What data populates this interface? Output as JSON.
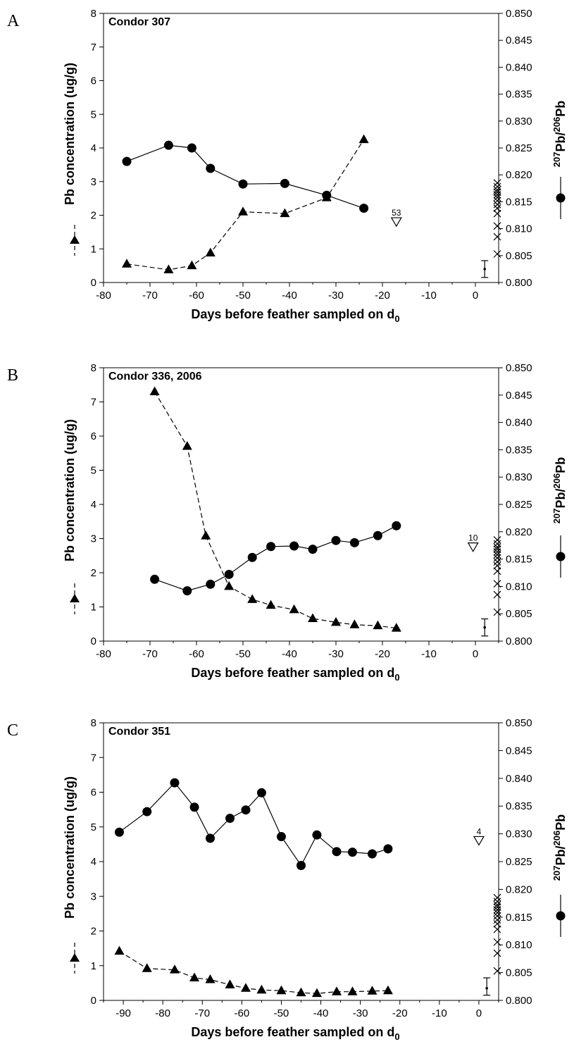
{
  "chart_data": [
    {
      "panel_label": "A",
      "title": "Condor 307",
      "type": "line",
      "xlabel": "Days before feather sampled on d",
      "xlabel_sub": "0",
      "ylabel_left": "Pb concentration (ug/g)",
      "ylabel_right_sup1": "207",
      "ylabel_right_mid": "Pb/",
      "ylabel_right_sup2": "206",
      "ylabel_right_end": "Pb",
      "xlim": [
        -80,
        5
      ],
      "xticks": [
        -80,
        -70,
        -60,
        -50,
        -40,
        -30,
        -20,
        -10,
        0
      ],
      "ylim_left": [
        0,
        8
      ],
      "yticks_left": [
        0,
        1,
        2,
        3,
        4,
        5,
        6,
        7,
        8
      ],
      "ylim_right": [
        0.8,
        0.85
      ],
      "yticks_right": [
        "0.800",
        "0.805",
        "0.810",
        "0.815",
        "0.820",
        "0.825",
        "0.830",
        "0.835",
        "0.840",
        "0.845",
        "0.850"
      ],
      "series": [
        {
          "axis": "right",
          "marker": "circle",
          "style": "solid",
          "x": [
            -75,
            -66,
            -61,
            -57,
            -50,
            -41,
            -32,
            -24
          ],
          "y": [
            0.8225,
            0.8255,
            0.825,
            0.8212,
            0.8183,
            0.8184,
            0.8162,
            0.8138
          ]
        },
        {
          "axis": "left",
          "marker": "triangle",
          "style": "dashed",
          "x": [
            -75,
            -66,
            -61,
            -57,
            -50,
            -41,
            -32,
            -24
          ],
          "y": [
            0.55,
            0.38,
            0.5,
            0.88,
            2.1,
            2.05,
            2.52,
            4.25
          ]
        }
      ],
      "outlier": {
        "x": -17,
        "y": 1.8,
        "label": "53"
      },
      "error_bar": {
        "x": 2,
        "y": 0.4,
        "low": 0.15,
        "high": 0.65
      },
      "reference_ratios": [
        0.8053,
        0.8085,
        0.8105,
        0.8128,
        0.8138,
        0.8145,
        0.8152,
        0.8158,
        0.8163,
        0.8168,
        0.8172,
        0.8178,
        0.8185
      ]
    },
    {
      "panel_label": "B",
      "title": "Condor 336, 2006",
      "type": "line",
      "xlabel": "Days before feather sampled on d",
      "xlabel_sub": "0",
      "ylabel_left": "Pb concentration (ug/g)",
      "ylabel_right_sup1": "207",
      "ylabel_right_mid": "Pb/",
      "ylabel_right_sup2": "206",
      "ylabel_right_end": "Pb",
      "xlim": [
        -80,
        5
      ],
      "xticks": [
        -80,
        -70,
        -60,
        -50,
        -40,
        -30,
        -20,
        -10,
        0
      ],
      "ylim_left": [
        0,
        8
      ],
      "yticks_left": [
        0,
        1,
        2,
        3,
        4,
        5,
        6,
        7,
        8
      ],
      "ylim_right": [
        0.8,
        0.85
      ],
      "yticks_right": [
        "0.800",
        "0.805",
        "0.810",
        "0.815",
        "0.820",
        "0.825",
        "0.830",
        "0.835",
        "0.840",
        "0.845",
        "0.850"
      ],
      "series": [
        {
          "axis": "right",
          "marker": "circle",
          "style": "solid",
          "x": [
            -69,
            -62,
            -57,
            -53,
            -48,
            -44,
            -39,
            -35,
            -30,
            -26,
            -21,
            -17
          ],
          "y": [
            0.8113,
            0.8092,
            0.8104,
            0.8122,
            0.8153,
            0.8173,
            0.8174,
            0.8168,
            0.8184,
            0.818,
            0.8193,
            0.8211
          ]
        },
        {
          "axis": "left",
          "marker": "triangle",
          "style": "dashed",
          "x": [
            -69,
            -62,
            -58,
            -53,
            -48,
            -44,
            -39,
            -35,
            -30,
            -26,
            -21,
            -17
          ],
          "y": [
            7.3,
            5.7,
            3.08,
            1.6,
            1.22,
            1.05,
            0.92,
            0.66,
            0.55,
            0.48,
            0.45,
            0.38
          ]
        }
      ],
      "outlier": {
        "x": -0.5,
        "y": 2.75,
        "label": "10"
      },
      "error_bar": {
        "x": 2,
        "y": 0.4,
        "low": 0.15,
        "high": 0.65
      },
      "reference_ratios": [
        0.8053,
        0.8085,
        0.8105,
        0.8128,
        0.8138,
        0.8145,
        0.8152,
        0.8158,
        0.8163,
        0.8168,
        0.8172,
        0.8178,
        0.8185
      ]
    },
    {
      "panel_label": "C",
      "title": "Condor 351",
      "type": "line",
      "xlabel": "Days before feather sampled on d",
      "xlabel_sub": "0",
      "ylabel_left": "Pb concentration (ug/g)",
      "ylabel_right_sup1": "207",
      "ylabel_right_mid": "Pb/",
      "ylabel_right_sup2": "206",
      "ylabel_right_end": "Pb",
      "xlim": [
        -95,
        5
      ],
      "xticks": [
        -90,
        -80,
        -70,
        -60,
        -50,
        -40,
        -30,
        -20,
        -10,
        0
      ],
      "ylim_left": [
        0,
        8
      ],
      "yticks_left": [
        0,
        1,
        2,
        3,
        4,
        5,
        6,
        7,
        8
      ],
      "ylim_right": [
        0.8,
        0.85
      ],
      "yticks_right": [
        "0.800",
        "0.805",
        "0.810",
        "0.815",
        "0.820",
        "0.825",
        "0.830",
        "0.835",
        "0.840",
        "0.845",
        "0.850"
      ],
      "series": [
        {
          "axis": "right",
          "marker": "circle",
          "style": "solid",
          "x": [
            -91,
            -84,
            -77,
            -72,
            -68,
            -63,
            -59,
            -55,
            -50,
            -45,
            -41,
            -36,
            -32,
            -27,
            -23
          ],
          "y": [
            0.8303,
            0.834,
            0.8392,
            0.8348,
            0.8292,
            0.8328,
            0.8343,
            0.8374,
            0.8295,
            0.8243,
            0.8298,
            0.8268,
            0.8267,
            0.8264,
            0.8273
          ]
        },
        {
          "axis": "left",
          "marker": "triangle",
          "style": "dashed",
          "x": [
            -91,
            -84,
            -77,
            -72,
            -68,
            -63,
            -59,
            -55,
            -50,
            -45,
            -41,
            -36,
            -32,
            -27,
            -23
          ],
          "y": [
            1.42,
            0.92,
            0.88,
            0.65,
            0.6,
            0.45,
            0.35,
            0.3,
            0.28,
            0.22,
            0.2,
            0.25,
            0.25,
            0.27,
            0.28
          ]
        }
      ],
      "outlier": {
        "x": 0,
        "y": 4.6,
        "label": "4"
      },
      "error_bar": {
        "x": 2,
        "y": 0.35,
        "low": 0.15,
        "high": 0.65
      },
      "reference_ratios": [
        0.8053,
        0.8085,
        0.8105,
        0.8128,
        0.8138,
        0.8145,
        0.8152,
        0.8158,
        0.8163,
        0.8168,
        0.8172,
        0.8178,
        0.8185
      ]
    }
  ]
}
